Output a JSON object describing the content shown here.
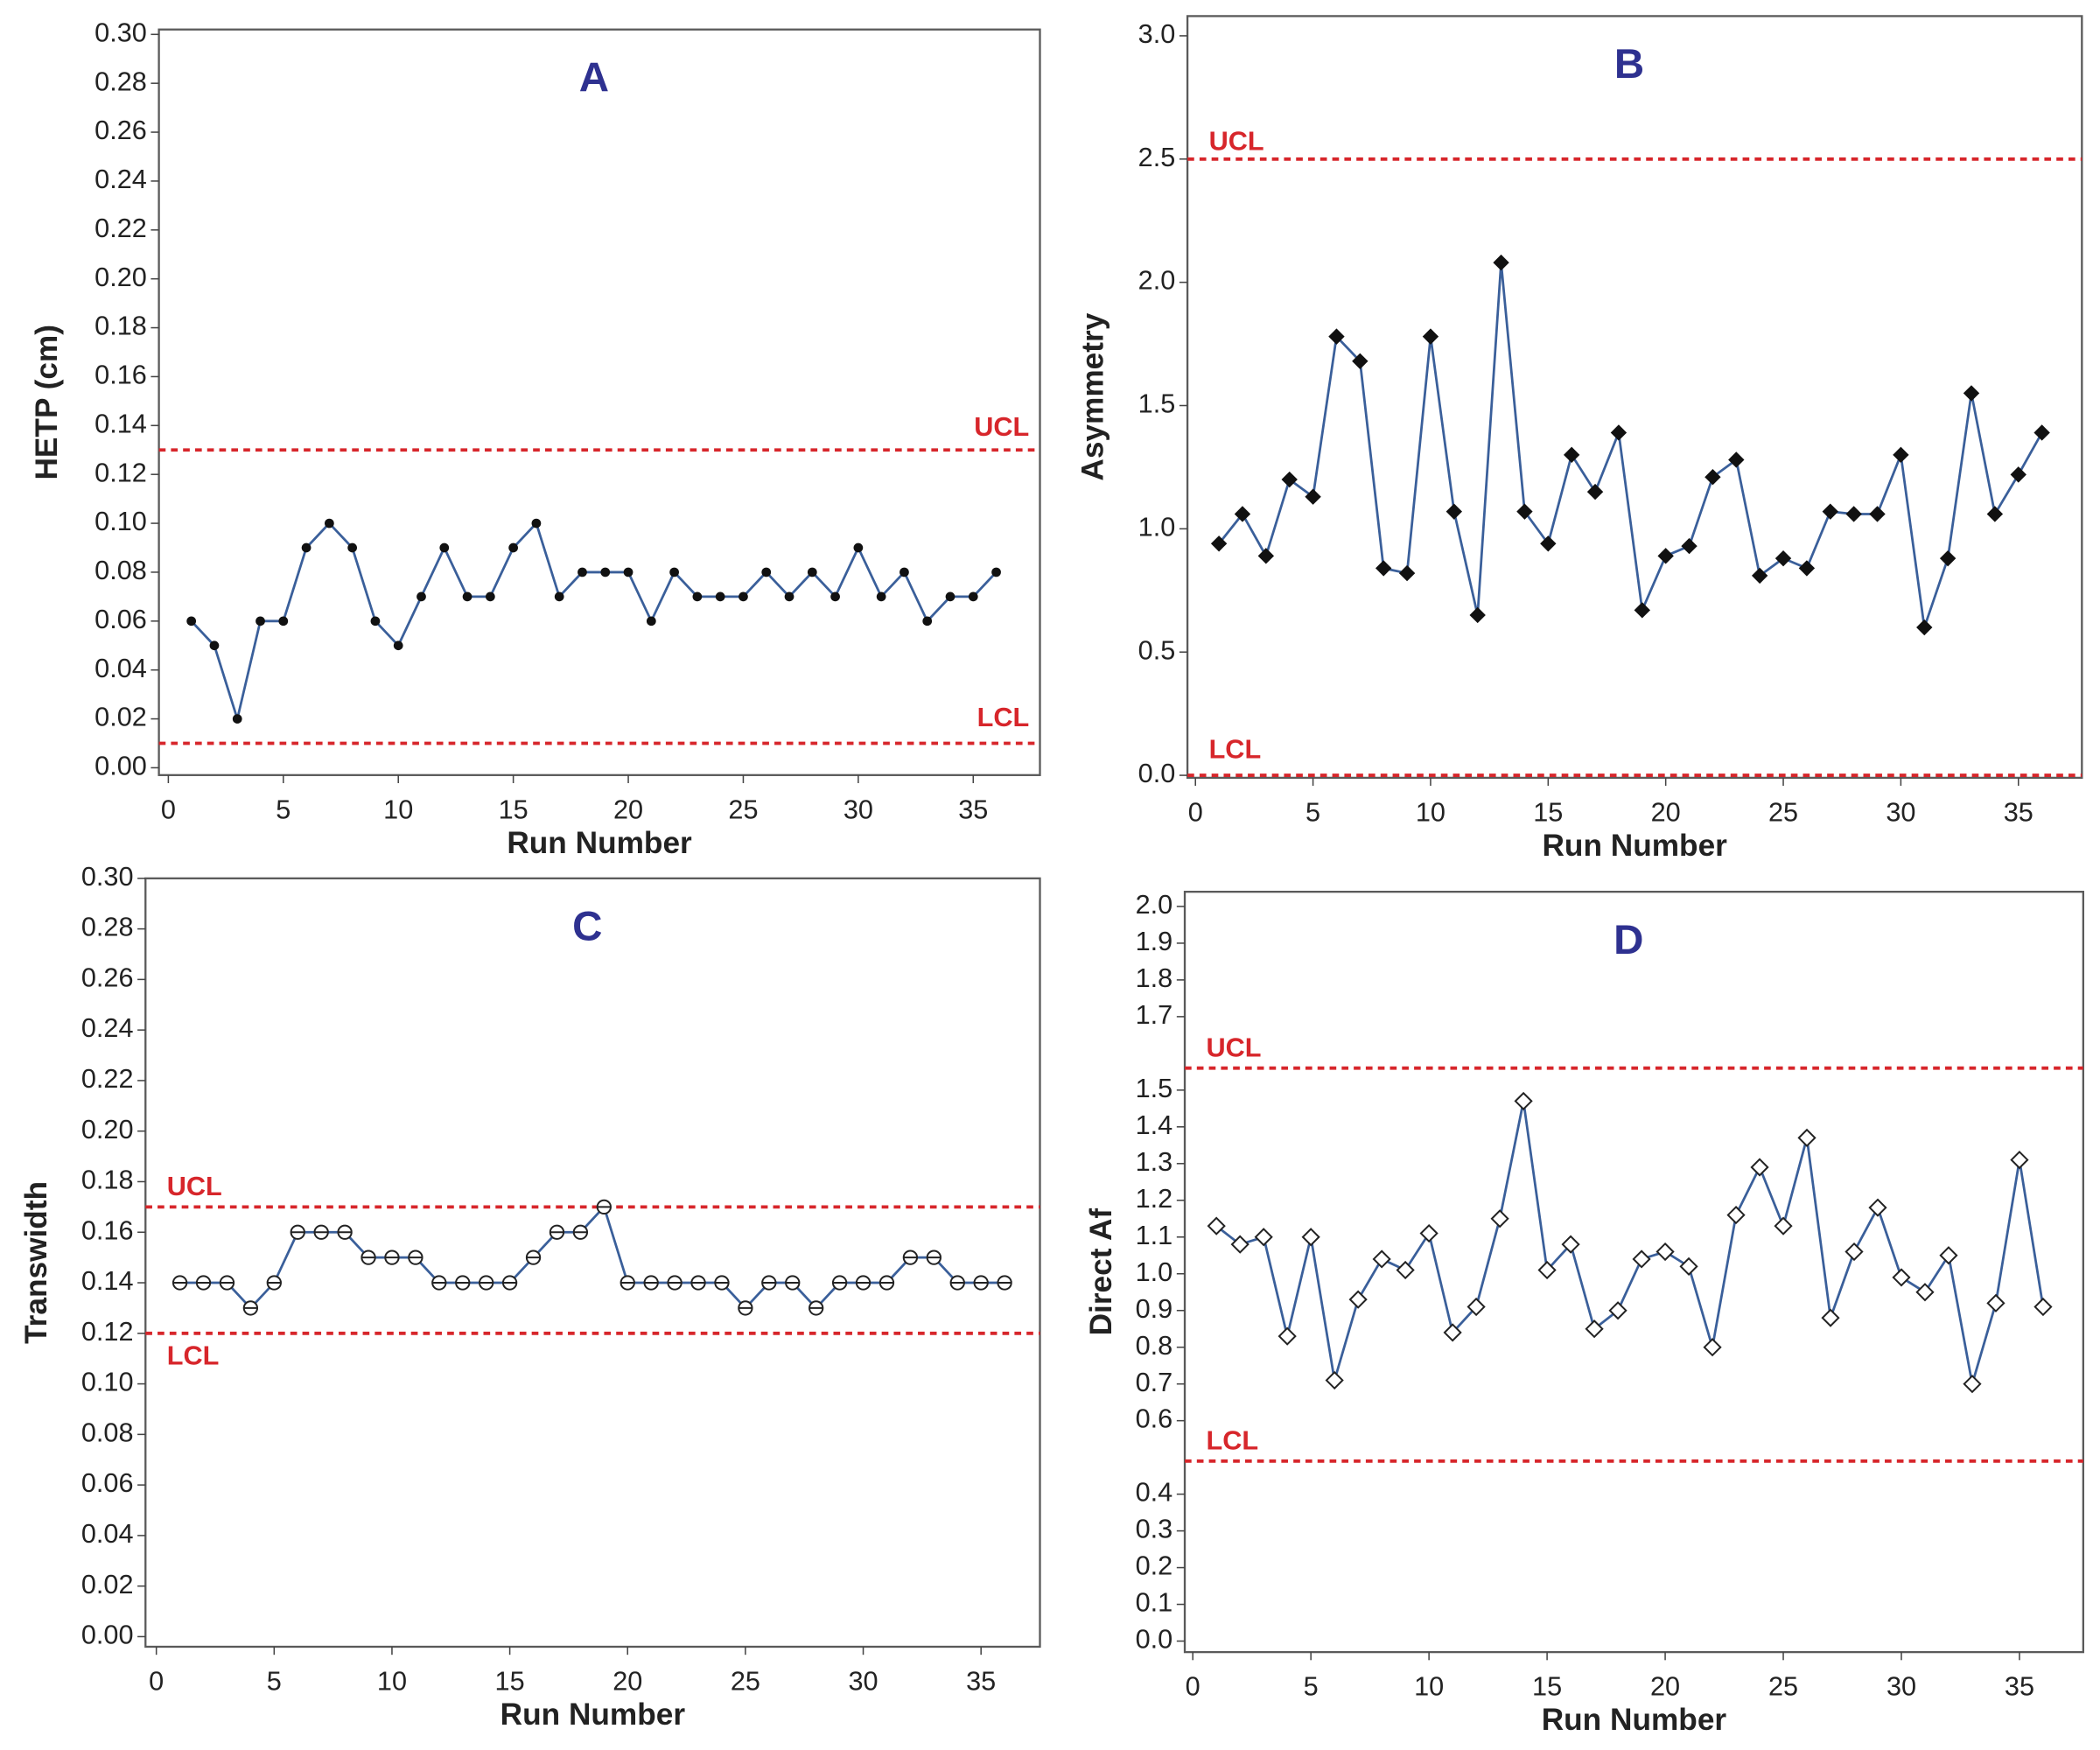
{
  "chart_data": [
    {
      "type": "line",
      "title": "A",
      "xlabel": "Run Number",
      "ylabel": "HETP (cm)",
      "marker": "dot",
      "line_color": "#3a5f9a",
      "title_color": "#2e3190",
      "limit_color": "#d7262b",
      "x": [
        1,
        2,
        3,
        4,
        5,
        6,
        7,
        8,
        9,
        10,
        11,
        12,
        13,
        14,
        15,
        16,
        17,
        18,
        19,
        20,
        21,
        22,
        23,
        24,
        25,
        26,
        27,
        28,
        29,
        30,
        31,
        32,
        33,
        34,
        35,
        36
      ],
      "values": [
        0.06,
        0.05,
        0.02,
        0.06,
        0.06,
        0.09,
        0.1,
        0.09,
        0.06,
        0.05,
        0.07,
        0.09,
        0.07,
        0.07,
        0.09,
        0.1,
        0.07,
        0.08,
        0.08,
        0.08,
        0.06,
        0.08,
        0.07,
        0.07,
        0.07,
        0.08,
        0.07,
        0.08,
        0.07,
        0.09,
        0.07,
        0.08,
        0.06,
        0.07,
        0.07,
        0.08
      ],
      "control_limits": [
        {
          "label": "UCL",
          "value": 0.13
        },
        {
          "label": "LCL",
          "value": 0.01
        }
      ],
      "xlim": [
        -0.41,
        37.9
      ],
      "xticks": [
        0,
        5,
        10,
        15,
        20,
        25,
        30,
        35
      ],
      "ylim": [
        -0.003,
        0.302
      ],
      "yticks": [
        {
          "value": 0,
          "label": "0.00"
        },
        0.02,
        0.04,
        0.06,
        0.08,
        {
          "value": 0.1,
          "label": "0.10"
        },
        0.12,
        0.14,
        0.16,
        0.18,
        {
          "value": 0.2,
          "label": "0.20"
        },
        0.22,
        0.24,
        0.26,
        0.28,
        {
          "value": 0.3,
          "label": "0.30"
        }
      ]
    },
    {
      "type": "line",
      "title": "B",
      "xlabel": "Run Number",
      "ylabel": "Asymmetry",
      "marker": "diamond",
      "line_color": "#3a5f9a",
      "title_color": "#2e3190",
      "limit_color": "#d7262b",
      "x": [
        1,
        2,
        3,
        4,
        5,
        6,
        7,
        8,
        9,
        10,
        11,
        12,
        13,
        14,
        15,
        16,
        17,
        18,
        19,
        20,
        21,
        22,
        23,
        24,
        25,
        26,
        27,
        28,
        29,
        30,
        31,
        32,
        33,
        34,
        35,
        36
      ],
      "values": [
        0.94,
        1.06,
        0.89,
        1.2,
        1.13,
        1.78,
        1.68,
        0.84,
        0.82,
        1.78,
        1.07,
        0.65,
        2.08,
        1.07,
        0.94,
        1.3,
        1.15,
        1.39,
        0.67,
        0.89,
        0.93,
        1.21,
        1.28,
        0.81,
        0.88,
        0.84,
        1.07,
        1.06,
        1.06,
        1.3,
        0.6,
        0.88,
        1.55,
        1.06,
        1.22,
        1.39
      ],
      "control_limits": [
        {
          "label": "UCL",
          "value": 2.5
        },
        {
          "label": "LCL",
          "value": 0
        }
      ],
      "xlim": [
        -0.34,
        37.7
      ],
      "xticks": [
        0,
        5,
        10,
        15,
        20,
        25,
        30,
        35
      ],
      "ylim": [
        -0.01,
        3.08
      ],
      "yticks": [
        {
          "value": 0,
          "label": "0.0"
        },
        0.5,
        {
          "value": 1,
          "label": "1.0"
        },
        1.5,
        {
          "value": 2,
          "label": "2.0"
        },
        2.5,
        {
          "value": 3,
          "label": "3.0"
        }
      ]
    },
    {
      "type": "line",
      "title": "C",
      "xlabel": "Run Number",
      "ylabel": "Transwidth",
      "marker": "open-circle",
      "line_color": "#3a5f9a",
      "title_color": "#2e3190",
      "limit_color": "#d7262b",
      "x": [
        1,
        2,
        3,
        4,
        5,
        6,
        7,
        8,
        9,
        10,
        11,
        12,
        13,
        14,
        15,
        16,
        17,
        18,
        19,
        20,
        21,
        22,
        23,
        24,
        25,
        26,
        27,
        28,
        29,
        30,
        31,
        32,
        33,
        34,
        35,
        36
      ],
      "values": [
        0.14,
        0.14,
        0.14,
        0.13,
        0.14,
        0.16,
        0.16,
        0.16,
        0.15,
        0.15,
        0.15,
        0.14,
        0.14,
        0.14,
        0.14,
        0.15,
        0.16,
        0.16,
        0.17,
        0.14,
        0.14,
        0.14,
        0.14,
        0.14,
        0.13,
        0.14,
        0.14,
        0.13,
        0.14,
        0.14,
        0.14,
        0.15,
        0.15,
        0.14,
        0.14,
        0.14
      ],
      "control_limits": [
        {
          "label": "UCL",
          "value": 0.17
        },
        {
          "label": "LCL",
          "value": 0.12
        }
      ],
      "xlim": [
        -0.46,
        37.5
      ],
      "xticks": [
        0,
        5,
        10,
        15,
        20,
        25,
        30,
        35
      ],
      "ylim": [
        -0.004,
        0.3
      ],
      "yticks": [
        {
          "value": 0,
          "label": "0.00"
        },
        0.02,
        0.04,
        0.06,
        0.08,
        {
          "value": 0.1,
          "label": "0.10"
        },
        0.12,
        0.14,
        0.16,
        0.18,
        {
          "value": 0.2,
          "label": "0.20"
        },
        0.22,
        0.24,
        0.26,
        0.28,
        {
          "value": 0.3,
          "label": "0.30"
        }
      ]
    },
    {
      "type": "line",
      "title": "D",
      "xlabel": "Run Number",
      "ylabel": "Direct Af",
      "marker": "open-diamond",
      "line_color": "#3a5f9a",
      "title_color": "#2e3190",
      "limit_color": "#d7262b",
      "x": [
        1,
        2,
        3,
        4,
        5,
        6,
        7,
        8,
        9,
        10,
        11,
        12,
        13,
        14,
        15,
        16,
        17,
        18,
        19,
        20,
        21,
        22,
        23,
        24,
        25,
        26,
        27,
        28,
        29,
        30,
        31,
        32,
        33,
        34,
        35,
        36
      ],
      "values": [
        1.13,
        1.08,
        1.1,
        0.83,
        1.1,
        0.71,
        0.93,
        1.04,
        1.01,
        1.11,
        0.84,
        0.91,
        1.15,
        1.47,
        1.01,
        1.08,
        0.85,
        0.9,
        1.04,
        1.06,
        1.02,
        0.8,
        1.16,
        1.29,
        1.13,
        1.37,
        0.88,
        1.06,
        1.18,
        0.99,
        0.95,
        1.05,
        0.7,
        0.92,
        1.31,
        0.91
      ],
      "control_limits": [
        {
          "label": "UCL",
          "value": 1.56
        },
        {
          "label": "LCL",
          "value": 0.49
        }
      ],
      "xlim": [
        -0.34,
        37.7
      ],
      "xticks": [
        0,
        5,
        10,
        15,
        20,
        25,
        30,
        35
      ],
      "ylim": [
        -0.03,
        2.04
      ],
      "yticks": [
        {
          "value": 0,
          "label": "0.0"
        },
        0.1,
        0.2,
        0.3,
        0.4,
        0.6,
        0.7,
        0.8,
        0.9,
        {
          "value": 1,
          "label": "1.0"
        },
        1.1,
        1.2,
        1.3,
        1.4,
        1.5,
        1.7,
        1.8,
        1.9,
        {
          "value": 2,
          "label": "2.0"
        }
      ]
    }
  ]
}
